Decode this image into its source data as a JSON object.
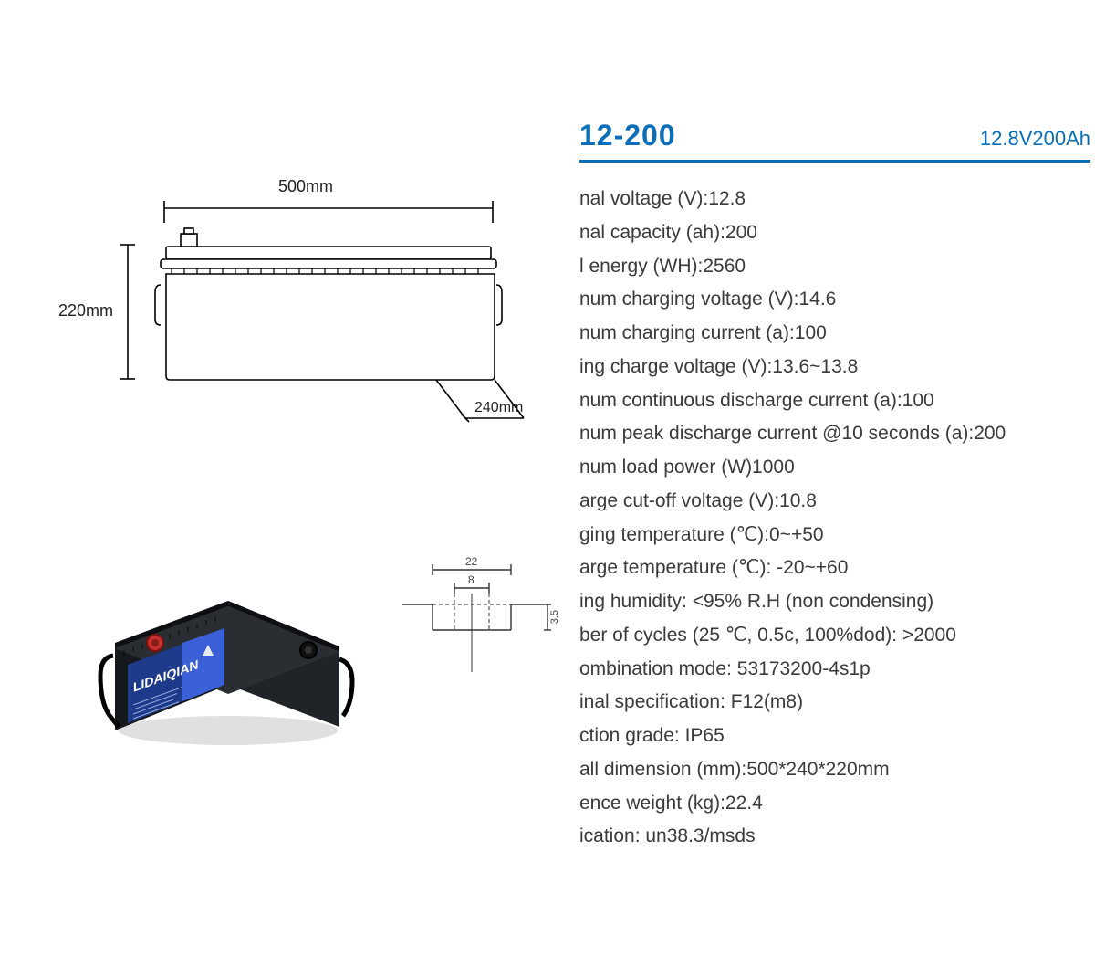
{
  "header": {
    "model": "12-200",
    "capacity": "12.8V200Ah",
    "accent_color": "#0a6fb8",
    "underline_color": "#0a6fb8"
  },
  "specs": [
    "nal voltage (V):12.8",
    "nal capacity (ah):200",
    "l energy (WH):2560",
    "num charging voltage (V):14.6",
    "num charging current (a):100",
    "ing charge voltage (V):13.6~13.8",
    "num continuous discharge current (a):100",
    "num peak discharge current @10 seconds (a):200",
    "num load power (W)1000",
    "arge cut-off voltage (V):10.8",
    "ging temperature (℃):0~+50",
    "arge temperature (℃): -20~+60",
    "ing humidity: <95% R.H (non condensing)",
    "ber of cycles (25 ℃, 0.5c, 100%dod): >2000",
    "ombination mode: 53173200-4s1p",
    "inal specification: F12(m8)",
    "ction grade: IP65",
    "all dimension (mm):500*240*220mm",
    "ence weight (kg):22.4",
    "ication: un38.3/msds"
  ],
  "spec_text_color": "#3a3a3a",
  "diagram": {
    "width_label": "500mm",
    "height_label": "220mm",
    "depth_label": "240mm",
    "stroke_color": "#000000",
    "fill_color": "#ffffff"
  },
  "terminal": {
    "outer_width": "22",
    "inner_width": "8",
    "height": "3.5",
    "stroke_color": "#333333"
  },
  "photo": {
    "body_color": "#1a1d22",
    "label_panel_color": "#1e3a8a",
    "label_panel_color2": "#3b5fd6",
    "brand_text": "LIDAIQIAN",
    "terminal_red": "#c53030",
    "terminal_black": "#111111"
  }
}
